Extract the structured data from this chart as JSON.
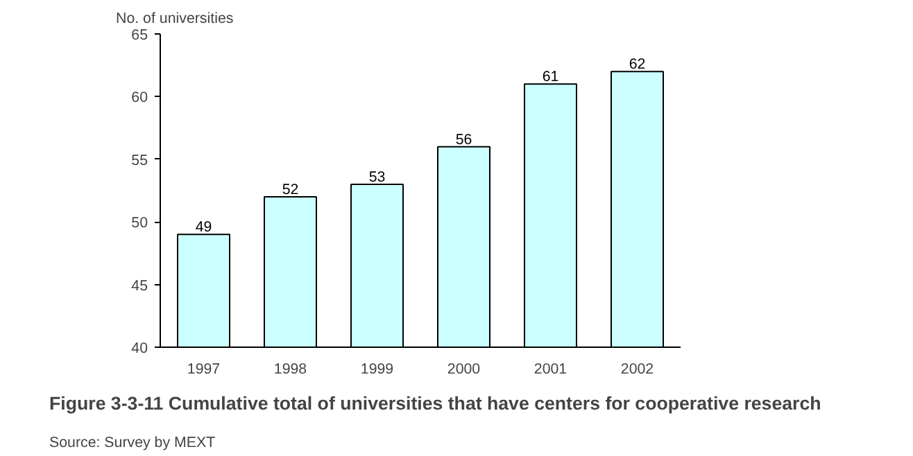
{
  "chart_data": {
    "type": "bar",
    "title": "Figure 3-3-11  Cumulative total of universities that have centers for cooperative research",
    "ylabel": "No. of universities",
    "annotations": [
      "Source: Survey by MEXT"
    ],
    "categories": [
      "1997",
      "1998",
      "1999",
      "2000",
      "2001",
      "2002"
    ],
    "values": [
      49,
      52,
      53,
      56,
      61,
      62
    ],
    "color": "#ccffff",
    "ylim": [
      40,
      65
    ],
    "yticks": [
      40,
      45,
      50,
      55,
      60,
      65
    ],
    "grid": false,
    "data_labels": true
  }
}
